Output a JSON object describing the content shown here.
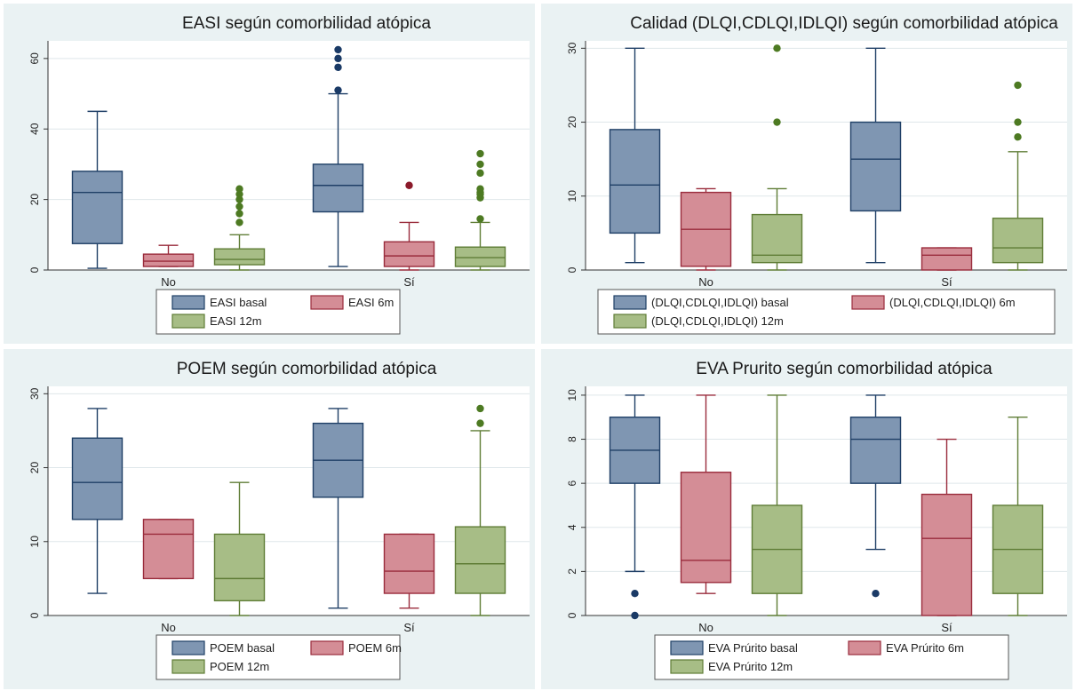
{
  "colors": {
    "panel_bg": "#eaf2f3",
    "plot_bg": "#ffffff",
    "grid": "#dfe7ea",
    "s0_fill": "#7f96b2",
    "s0_stroke": "#1f3f66",
    "s0_dot": "#1a3a66",
    "s1_fill": "#d48d96",
    "s1_stroke": "#9a2c3c",
    "s1_dot": "#8b1a2a",
    "s2_fill": "#a7bd86",
    "s2_stroke": "#5f7d36",
    "s2_dot": "#4d7a22"
  },
  "chart_data": [
    {
      "type": "box",
      "title": "EASI según comorbilidad atópica",
      "categories": [
        "No",
        "Sí"
      ],
      "yticks": [
        0,
        20,
        40,
        60
      ],
      "ylim": [
        0,
        65
      ],
      "grid": true,
      "legend_position": "bottom",
      "legend": [
        "EASI basal",
        "EASI 6m",
        "EASI 12m"
      ],
      "series": [
        {
          "name": "EASI basal",
          "boxes": [
            {
              "min": 0.5,
              "q1": 7.5,
              "median": 22,
              "q3": 28,
              "max": 45,
              "outliers": []
            },
            {
              "min": 1,
              "q1": 16.5,
              "median": 24,
              "q3": 30,
              "max": 50,
              "outliers": [
                51,
                57.5,
                60,
                62.5
              ]
            }
          ]
        },
        {
          "name": "EASI 6m",
          "boxes": [
            {
              "min": 1,
              "q1": 1,
              "median": 2.5,
              "q3": 4.5,
              "max": 7,
              "outliers": []
            },
            {
              "min": 0,
              "q1": 1,
              "median": 4,
              "q3": 8,
              "max": 13.5,
              "outliers": [
                24
              ]
            }
          ]
        },
        {
          "name": "EASI 12m",
          "boxes": [
            {
              "min": 0,
              "q1": 1.5,
              "median": 3,
              "q3": 6,
              "max": 10,
              "outliers": [
                13.5,
                16,
                18,
                20,
                21.5,
                23
              ]
            },
            {
              "min": 0,
              "q1": 1,
              "median": 3.5,
              "q3": 6.5,
              "max": 13.5,
              "outliers": [
                14.5,
                20.5,
                21.5,
                22,
                23,
                27.5,
                30,
                33
              ]
            }
          ]
        }
      ]
    },
    {
      "type": "box",
      "title": "Calidad (DLQI,CDLQI,IDLQI) según comorbilidad atópica",
      "categories": [
        "No",
        "Sí"
      ],
      "yticks": [
        0,
        10,
        20,
        30
      ],
      "ylim": [
        0,
        31
      ],
      "grid": true,
      "legend_position": "bottom",
      "legend": [
        "(DLQI,CDLQI,IDLQI) basal",
        "(DLQI,CDLQI,IDLQI) 6m",
        "(DLQI,CDLQI,IDLQI) 12m"
      ],
      "series": [
        {
          "name": "(DLQI,CDLQI,IDLQI) basal",
          "boxes": [
            {
              "min": 1,
              "q1": 5,
              "median": 11.5,
              "q3": 19,
              "max": 30,
              "outliers": []
            },
            {
              "min": 1,
              "q1": 8,
              "median": 15,
              "q3": 20,
              "max": 30,
              "outliers": []
            }
          ]
        },
        {
          "name": "(DLQI,CDLQI,IDLQI) 6m",
          "boxes": [
            {
              "min": 0,
              "q1": 0.5,
              "median": 5.5,
              "q3": 10.5,
              "max": 11,
              "outliers": []
            },
            {
              "min": 0,
              "q1": 0,
              "median": 2,
              "q3": 3,
              "max": 3,
              "outliers": []
            }
          ]
        },
        {
          "name": "(DLQI,CDLQI,IDLQI) 12m",
          "boxes": [
            {
              "min": 0,
              "q1": 1,
              "median": 2,
              "q3": 7.5,
              "max": 11,
              "outliers": [
                20,
                30
              ]
            },
            {
              "min": 0,
              "q1": 1,
              "median": 3,
              "q3": 7,
              "max": 16,
              "outliers": [
                18,
                20,
                25
              ]
            }
          ]
        }
      ]
    },
    {
      "type": "box",
      "title": "POEM según comorbilidad atópica",
      "categories": [
        "No",
        "Sí"
      ],
      "yticks": [
        0,
        10,
        20,
        30
      ],
      "ylim": [
        0,
        31
      ],
      "grid": true,
      "legend_position": "bottom",
      "legend": [
        "POEM basal",
        "POEM 6m",
        "POEM 12m"
      ],
      "series": [
        {
          "name": "POEM basal",
          "boxes": [
            {
              "min": 3,
              "q1": 13,
              "median": 18,
              "q3": 24,
              "max": 28,
              "outliers": []
            },
            {
              "min": 1,
              "q1": 16,
              "median": 21,
              "q3": 26,
              "max": 28,
              "outliers": []
            }
          ]
        },
        {
          "name": "POEM 6m",
          "boxes": [
            {
              "min": 5,
              "q1": 5,
              "median": 11,
              "q3": 13,
              "max": 13,
              "outliers": []
            },
            {
              "min": 1,
              "q1": 3,
              "median": 6,
              "q3": 11,
              "max": 11,
              "outliers": []
            }
          ]
        },
        {
          "name": "POEM 12m",
          "boxes": [
            {
              "min": 0,
              "q1": 2,
              "median": 5,
              "q3": 11,
              "max": 18,
              "outliers": []
            },
            {
              "min": 0,
              "q1": 3,
              "median": 7,
              "q3": 12,
              "max": 25,
              "outliers": [
                26,
                28
              ]
            }
          ]
        }
      ]
    },
    {
      "type": "box",
      "title": "EVA Prurito según comorbilidad atópica",
      "categories": [
        "No",
        "Sí"
      ],
      "yticks": [
        0,
        2,
        4,
        6,
        8,
        10
      ],
      "ylim": [
        0,
        10.4
      ],
      "grid": true,
      "legend_position": "bottom",
      "legend": [
        "EVA Prúrito basal",
        "EVA Prúrito 6m",
        "EVA Prúrito 12m"
      ],
      "series": [
        {
          "name": "EVA Prúrito basal",
          "boxes": [
            {
              "min": 2,
              "q1": 6,
              "median": 7.5,
              "q3": 9,
              "max": 10,
              "outliers": [
                0,
                1
              ]
            },
            {
              "min": 3,
              "q1": 6,
              "median": 8,
              "q3": 9,
              "max": 10,
              "outliers": [
                1
              ]
            }
          ]
        },
        {
          "name": "EVA Prúrito 6m",
          "boxes": [
            {
              "min": 1,
              "q1": 1.5,
              "median": 2.5,
              "q3": 6.5,
              "max": 10,
              "outliers": []
            },
            {
              "min": 0,
              "q1": 0,
              "median": 3.5,
              "q3": 5.5,
              "max": 8,
              "outliers": []
            }
          ]
        },
        {
          "name": "EVA Prúrito 12m",
          "boxes": [
            {
              "min": 0,
              "q1": 1,
              "median": 3,
              "q3": 5,
              "max": 10,
              "outliers": []
            },
            {
              "min": 0,
              "q1": 1,
              "median": 3,
              "q3": 5,
              "max": 9,
              "outliers": []
            }
          ]
        }
      ]
    }
  ]
}
